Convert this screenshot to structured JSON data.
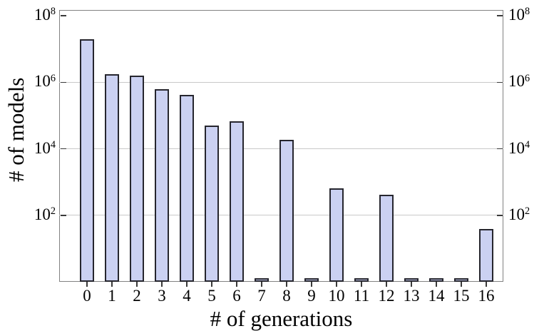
{
  "chart_data": {
    "type": "bar",
    "title": "",
    "xlabel": "# of generations",
    "ylabel": "# of models",
    "categories": [
      "0",
      "1",
      "2",
      "3",
      "4",
      "5",
      "6",
      "7",
      "8",
      "9",
      "10",
      "11",
      "12",
      "13",
      "14",
      "15",
      "16"
    ],
    "values": [
      20000000,
      1800000,
      1600000,
      630000,
      410000,
      50000,
      69000,
      1,
      19000,
      1,
      640,
      1,
      410,
      1,
      1,
      1,
      38
    ],
    "y_scale": "log",
    "ylim": [
      1,
      150000000
    ],
    "y_tick_labels": [
      "10^2",
      "10^4",
      "10^6",
      "10^8"
    ],
    "y_tick_exponents": [
      2,
      4,
      6,
      8
    ],
    "y_gridline_exponents": [
      2,
      4,
      6
    ],
    "y_axis_labels_on_both_sides": true,
    "grid": "horizontal-only",
    "legend": "none",
    "colors": {
      "bar_fill": "#cbd1f2",
      "bar_border": "#26262e",
      "gridline": "#c9c9c9",
      "frame": "#828282",
      "tick": "#3a3a3a",
      "text": "#000000",
      "background": "#ffffff"
    }
  }
}
